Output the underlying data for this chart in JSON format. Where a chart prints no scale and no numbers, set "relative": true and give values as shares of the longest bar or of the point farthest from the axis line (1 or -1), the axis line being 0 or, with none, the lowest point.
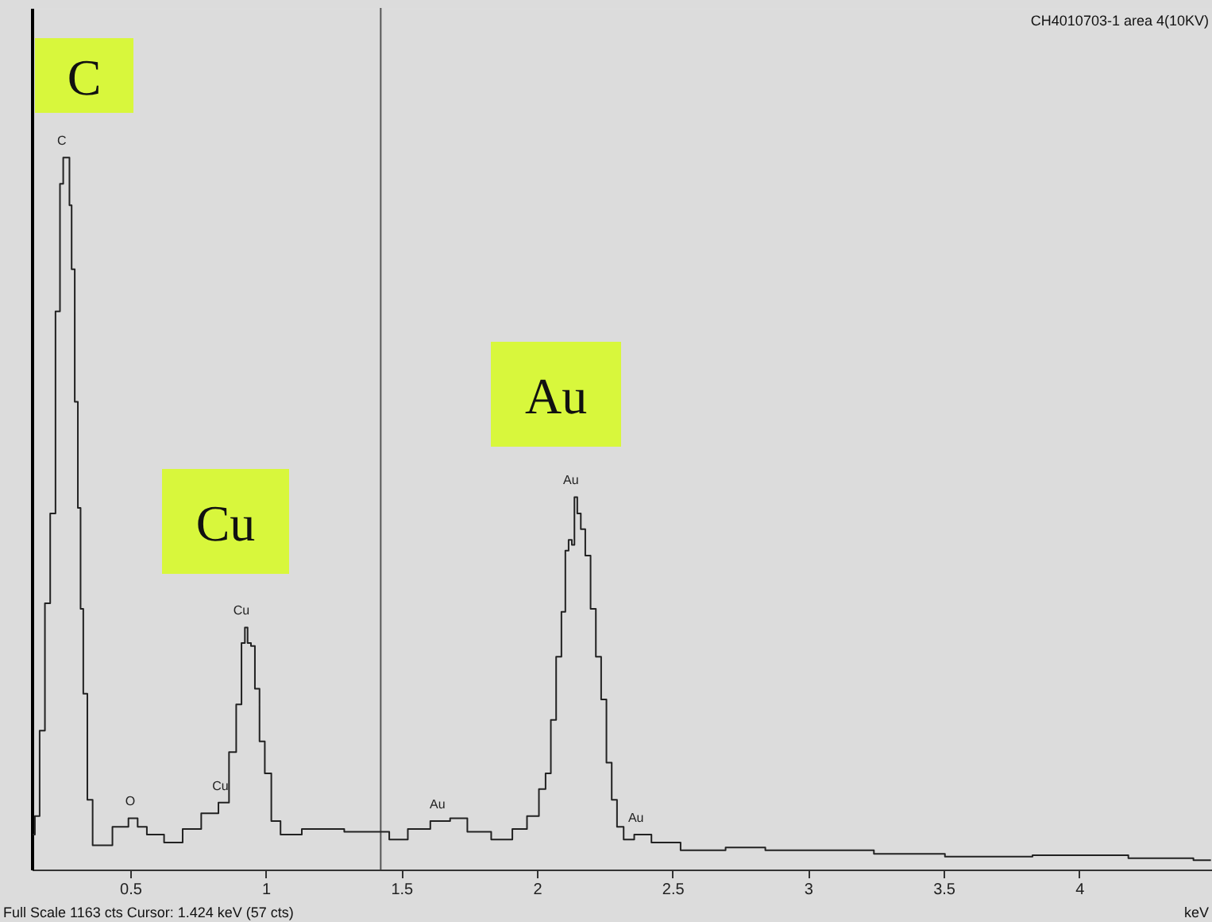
{
  "chart_data": {
    "type": "step",
    "relative": true,
    "subtitle": "CH4010703-1 area 4(10KV)",
    "xlabel": "keV",
    "x": [
      0.141,
      0.156,
      0.176,
      0.195,
      0.215,
      0.234,
      0.248,
      0.258,
      0.273,
      0.279,
      0.289,
      0.302,
      0.312,
      0.322,
      0.332,
      0.352,
      0.371,
      0.4,
      0.469,
      0.518,
      0.537,
      0.586,
      0.664,
      0.723,
      0.801,
      0.85,
      0.879,
      0.903,
      0.918,
      0.928,
      0.938,
      0.953,
      0.967,
      0.987,
      1.006,
      1.035,
      1.074,
      1.192,
      1.387,
      1.426,
      1.485,
      1.563,
      1.651,
      1.709,
      1.778,
      1.885,
      1.934,
      1.993,
      2.022,
      2.042,
      2.061,
      2.081,
      2.1,
      2.11,
      2.124,
      2.134,
      2.143,
      2.155,
      2.169,
      2.188,
      2.208,
      2.227,
      2.247,
      2.266,
      2.286,
      2.305,
      2.335,
      2.383,
      2.462,
      2.598,
      2.794,
      2.891,
      3.126,
      3.36,
      3.65,
      4.006,
      4.357,
      4.486
    ],
    "series": [
      {
        "color": "#222222",
        "values": [
          0.049,
          0.075,
          0.195,
          0.374,
          0.5,
          0.784,
          0.963,
          1.0,
          1.0,
          0.933,
          0.843,
          0.657,
          0.508,
          0.366,
          0.247,
          0.098,
          0.034,
          0.034,
          0.06,
          0.072,
          0.06,
          0.049,
          0.038,
          0.057,
          0.079,
          0.094,
          0.165,
          0.232,
          0.318,
          0.34,
          0.318,
          0.314,
          0.254,
          0.18,
          0.135,
          0.068,
          0.049,
          0.057,
          0.053,
          0.053,
          0.042,
          0.057,
          0.068,
          0.072,
          0.053,
          0.042,
          0.057,
          0.075,
          0.113,
          0.135,
          0.21,
          0.299,
          0.362,
          0.448,
          0.463,
          0.456,
          0.523,
          0.5,
          0.478,
          0.441,
          0.366,
          0.299,
          0.239,
          0.15,
          0.098,
          0.06,
          0.042,
          0.049,
          0.038,
          0.027,
          0.031,
          0.027,
          0.027,
          0.022,
          0.018,
          0.02,
          0.016,
          0.013
        ]
      }
    ],
    "xlim": [
      0.137,
      4.49
    ],
    "xticks": [
      0.5,
      1,
      1.5,
      2,
      2.5,
      3,
      3.5,
      4
    ],
    "marker": "none",
    "line_style": "solid",
    "ref_lines": [
      {
        "axis": "x",
        "value": 1.424,
        "color": "#555555"
      }
    ],
    "annotations": [
      {
        "text": "C",
        "x": 0.265,
        "y": 1.0
      },
      {
        "text": "O",
        "x": 0.518,
        "y": 0.072
      },
      {
        "text": "Cu",
        "x": 0.85,
        "y": 0.094
      },
      {
        "text": "Cu",
        "x": 0.928,
        "y": 0.34
      },
      {
        "text": "Au",
        "x": 1.651,
        "y": 0.068
      },
      {
        "text": "Au",
        "x": 2.143,
        "y": 0.523
      },
      {
        "text": "Au",
        "x": 2.383,
        "y": 0.049
      },
      "C",
      "Cu",
      "Au",
      "Full Scale 1163 cts  Cursor: 1.424 keV (57 cts)"
    ]
  }
}
